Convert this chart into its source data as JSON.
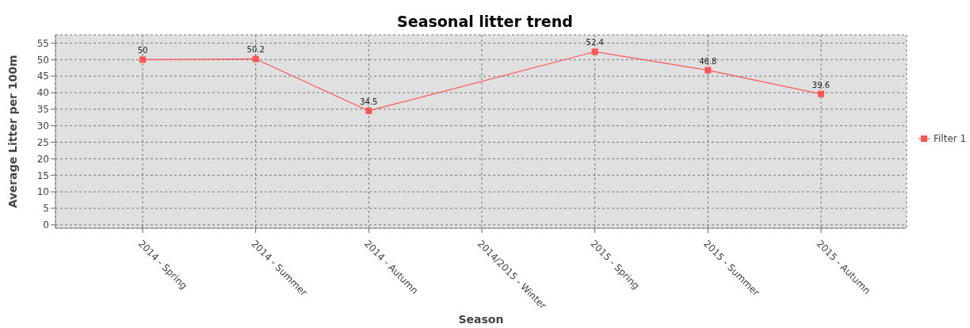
{
  "chart_data": {
    "type": "line",
    "title": "Seasonal litter trend",
    "xlabel": "Season",
    "ylabel": "Average Litter per 100m",
    "categories": [
      "2014 - Spring",
      "2014 - Summer",
      "2014 - Autumn",
      "2014/2015 - Winter",
      "2015 - Spring",
      "2015 - Summer",
      "2015 - Autumn"
    ],
    "series": [
      {
        "name": "Filter 1",
        "color": "#ff5555",
        "values": [
          50,
          50.2,
          34.5,
          null,
          52.4,
          46.8,
          39.6
        ]
      }
    ],
    "ylim": [
      -1,
      57.5
    ],
    "yticks": [
      0,
      5,
      10,
      15,
      20,
      25,
      30,
      35,
      40,
      45,
      50,
      55
    ],
    "grid": true,
    "legend": "right",
    "marker": "square",
    "line_style": "solid",
    "data_labels": true
  }
}
